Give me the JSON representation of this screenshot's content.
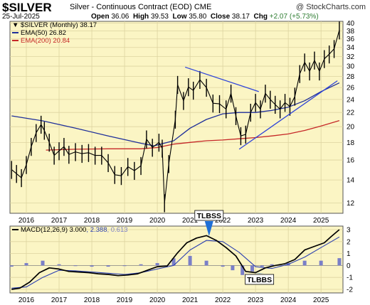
{
  "header": {
    "symbol": "$SILVER",
    "description": "Silver - Continuous Contract (EOD)",
    "exchange": "CME",
    "watermark": "@ StockCharts.com",
    "date": "25-Jul-2025",
    "open_label": "Open",
    "open": "36.06",
    "high_label": "High",
    "high": "39.53",
    "low_label": "Low",
    "low": "35.80",
    "close_label": "Close",
    "close": "38.17",
    "chg_label": "Chg",
    "chg": "+2.07 (+5.73%)"
  },
  "colors": {
    "plot_bg": "#fbf5c4",
    "grid": "#ddd4a0",
    "price": "#000000",
    "ema50": "#1f2f9a",
    "ema200": "#c62828",
    "trendline": "#2e44d9",
    "histogram": "#7a7fc8",
    "annotation_arrow": "#1f6fd6",
    "macd_signal": "#2b3fb0"
  },
  "chart_data": [
    {
      "type": "line",
      "title": "$SILVER (Monthly) 38.17",
      "scale": "log",
      "x_unit": "year",
      "ylim": [
        11.2,
        40.5
      ],
      "y_ticks": [
        12,
        14,
        16,
        18,
        20,
        22,
        24,
        26,
        28,
        30,
        32,
        34,
        36,
        38,
        40
      ],
      "x_ticks": [
        "2016",
        "2017",
        "2018",
        "2019",
        "2020",
        "2021",
        "2022",
        "2023",
        "2024",
        "2025"
      ],
      "legend": [
        {
          "key": "price",
          "label": "$SILVER (Monthly) 38.17"
        },
        {
          "key": "ema50",
          "label": "EMA(50) 26.82"
        },
        {
          "key": "ema200",
          "label": "EMA(200) 20.84"
        }
      ],
      "series": [
        {
          "name": "$SILVER (Monthly)",
          "x": [
            2015.55,
            2015.7,
            2015.85,
            2016.0,
            2016.15,
            2016.3,
            2016.45,
            2016.55,
            2016.7,
            2016.85,
            2017.0,
            2017.15,
            2017.3,
            2017.5,
            2017.7,
            2017.9,
            2018.1,
            2018.3,
            2018.5,
            2018.7,
            2018.9,
            2019.1,
            2019.3,
            2019.5,
            2019.67,
            2019.85,
            2020.05,
            2020.15,
            2020.22,
            2020.35,
            2020.55,
            2020.62,
            2020.8,
            2020.95,
            2021.1,
            2021.3,
            2021.5,
            2021.7,
            2021.9,
            2022.1,
            2022.25,
            2022.4,
            2022.55,
            2022.7,
            2022.85,
            2023.0,
            2023.15,
            2023.3,
            2023.45,
            2023.6,
            2023.75,
            2023.9,
            2024.05,
            2024.2,
            2024.35,
            2024.5,
            2024.65,
            2024.8,
            2024.95,
            2025.1,
            2025.25,
            2025.4,
            2025.56
          ],
          "values": [
            15.0,
            14.6,
            14.2,
            15.5,
            17.5,
            19.2,
            20.3,
            19.5,
            18.0,
            16.5,
            17.0,
            17.5,
            16.6,
            16.9,
            16.7,
            16.8,
            16.5,
            16.5,
            15.7,
            14.5,
            14.4,
            15.3,
            14.9,
            15.4,
            18.4,
            17.4,
            18.0,
            17.3,
            12.0,
            15.6,
            21.0,
            26.5,
            23.8,
            26.1,
            25.5,
            27.4,
            26.0,
            23.4,
            23.3,
            22.5,
            25.0,
            21.5,
            18.8,
            19.0,
            22.0,
            23.5,
            22.5,
            25.0,
            24.0,
            23.2,
            22.5,
            23.5,
            22.9,
            24.5,
            28.5,
            30.8,
            29.0,
            31.2,
            29.0,
            31.5,
            32.5,
            33.7,
            38.17
          ]
        },
        {
          "name": "EMA(50)",
          "x": [
            2015.55,
            2016.5,
            2017.5,
            2018.5,
            2019.5,
            2019.9,
            2020.5,
            2021.0,
            2021.5,
            2022.0,
            2022.5,
            2023.0,
            2023.5,
            2024.0,
            2024.5,
            2025.0,
            2025.56
          ],
          "values": [
            21.5,
            20.8,
            19.8,
            18.8,
            17.9,
            17.6,
            18.2,
            19.8,
            21.0,
            21.8,
            22.0,
            22.0,
            22.3,
            22.8,
            23.8,
            25.3,
            26.82
          ]
        },
        {
          "name": "EMA(200)",
          "x": [
            2016.6,
            2017.5,
            2018.5,
            2019.5,
            2020.0,
            2020.5,
            2021.0,
            2021.5,
            2022.0,
            2022.5,
            2023.0,
            2023.5,
            2024.0,
            2024.5,
            2025.0,
            2025.56
          ],
          "values": [
            17.1,
            17.2,
            17.25,
            17.25,
            17.4,
            17.8,
            18.0,
            18.2,
            18.3,
            18.45,
            18.6,
            18.8,
            19.05,
            19.5,
            20.1,
            20.84
          ]
        }
      ],
      "trendlines": [
        {
          "x": [
            2020.85,
            2023.1
          ],
          "values": [
            29.8,
            25.3
          ]
        },
        {
          "x": [
            2022.5,
            2025.5
          ],
          "values": [
            17.2,
            27.2
          ]
        }
      ]
    },
    {
      "type": "line",
      "title": "MACD(12,26,9) 3.000, 2.388, 0.613",
      "x_unit": "year",
      "ylim": [
        -2.3,
        3.3
      ],
      "y_ticks": [
        -2,
        -1,
        0,
        1,
        2,
        3
      ],
      "x_ticks": [
        "2016",
        "2017",
        "2018",
        "2019",
        "2020",
        "2021",
        "2022",
        "2023",
        "2024",
        "2025"
      ],
      "legend": [
        {
          "key": "macd",
          "label": "MACD(12,26,9)"
        },
        {
          "key": "macd_value",
          "label": "3.000"
        },
        {
          "key": "signal_value",
          "label": "2.388"
        },
        {
          "key": "hist_value",
          "label": "0.613"
        }
      ],
      "series": [
        {
          "name": "MACD",
          "x": [
            2015.55,
            2015.8,
            2016.1,
            2016.4,
            2016.7,
            2017.0,
            2017.3,
            2017.6,
            2017.9,
            2018.2,
            2018.5,
            2018.8,
            2019.1,
            2019.4,
            2019.7,
            2020.0,
            2020.3,
            2020.6,
            2020.9,
            2021.2,
            2021.5,
            2021.8,
            2022.1,
            2022.4,
            2022.7,
            2023.0,
            2023.3,
            2023.6,
            2023.9,
            2024.2,
            2024.5,
            2024.8,
            2025.1,
            2025.3,
            2025.56
          ],
          "values": [
            -2.0,
            -1.9,
            -1.4,
            -0.6,
            -0.2,
            -0.3,
            -0.5,
            -0.55,
            -0.6,
            -0.7,
            -0.75,
            -0.85,
            -0.8,
            -0.7,
            -0.4,
            -0.1,
            -0.05,
            1.0,
            1.9,
            2.3,
            2.5,
            2.1,
            1.5,
            0.8,
            -0.5,
            -0.6,
            -0.2,
            0.0,
            0.15,
            0.5,
            1.3,
            1.6,
            1.9,
            2.4,
            3.0
          ]
        },
        {
          "name": "Signal",
          "x": [
            2015.55,
            2016.0,
            2016.5,
            2017.0,
            2017.5,
            2018.0,
            2018.5,
            2019.0,
            2019.5,
            2020.0,
            2020.5,
            2021.0,
            2021.5,
            2022.0,
            2022.5,
            2023.0,
            2023.5,
            2024.0,
            2024.5,
            2025.0,
            2025.56
          ],
          "values": [
            -1.9,
            -1.8,
            -1.0,
            -0.4,
            -0.45,
            -0.55,
            -0.65,
            -0.75,
            -0.6,
            -0.3,
            0.0,
            1.3,
            2.1,
            2.0,
            1.1,
            -0.1,
            -0.25,
            0.1,
            0.7,
            1.5,
            2.388
          ]
        },
        {
          "name": "Histogram",
          "x": [
            2015.55,
            2016.0,
            2016.5,
            2017.0,
            2017.5,
            2018.0,
            2018.5,
            2019.0,
            2019.5,
            2020.0,
            2020.5,
            2021.0,
            2021.5,
            2022.0,
            2022.3,
            2022.6,
            2022.9,
            2023.2,
            2023.5,
            2024.0,
            2024.5,
            2025.0,
            2025.56
          ],
          "values": [
            -0.1,
            0.2,
            0.4,
            0.1,
            -0.05,
            -0.1,
            -0.1,
            -0.05,
            0.1,
            0.2,
            0.6,
            0.8,
            0.4,
            -0.1,
            -0.4,
            -0.8,
            -0.5,
            -0.1,
            0.1,
            0.2,
            0.4,
            0.4,
            0.613
          ]
        }
      ],
      "annotations": [
        {
          "label": "TLBSS",
          "x": 2021.58,
          "value": 2.4,
          "direction": "down"
        },
        {
          "label": "TLBBS",
          "x": 2023.12,
          "value": -0.6,
          "direction": "up"
        }
      ]
    }
  ]
}
